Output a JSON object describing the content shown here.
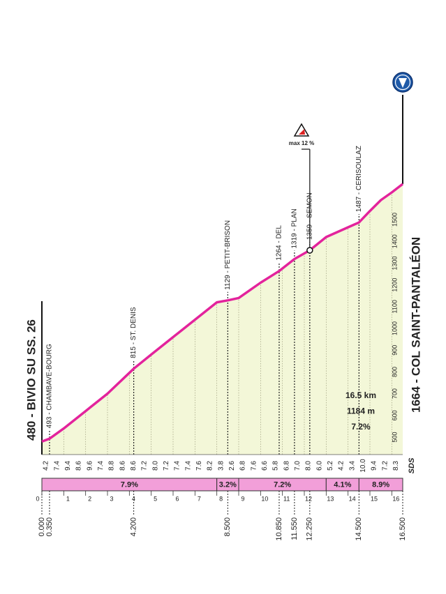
{
  "chart_data": {
    "type": "elevation-profile",
    "start_label": "480 - BIVIO SU SS. 26",
    "finish_label": "1664 - COL SAINT-PANTALÉON",
    "x": [
      0,
      0.35,
      1,
      2,
      3,
      4.2,
      5,
      6,
      7,
      8,
      8.5,
      9,
      10,
      10.85,
      11.55,
      12.25,
      13,
      14,
      14.5,
      15,
      15.5,
      16,
      16.5
    ],
    "elevation": [
      480,
      493,
      540,
      620,
      700,
      815,
      880,
      960,
      1040,
      1120,
      1129,
      1140,
      1210,
      1264,
      1319,
      1359,
      1420,
      1465,
      1487,
      1540,
      1590,
      1625,
      1664
    ],
    "color": "#e3239c",
    "fill": "#f3f7d8",
    "xlim": [
      0,
      16.5
    ],
    "xticks": [
      0,
      1,
      2,
      3,
      4,
      5,
      6,
      7,
      8,
      9,
      10,
      11,
      12,
      13,
      14,
      15,
      16
    ],
    "ylim": [
      420,
      1720
    ],
    "yticks": [
      500,
      600,
      700,
      800,
      900,
      1000,
      1100,
      1200,
      1300,
      1400,
      1500
    ],
    "distance_labels": [
      {
        "value": 0,
        "label": "0.000"
      },
      {
        "value": 0.35,
        "label": "0.350"
      },
      {
        "value": 4.2,
        "label": "4.200"
      },
      {
        "value": 8.5,
        "label": "8.500"
      },
      {
        "value": 10.85,
        "label": "10.850"
      },
      {
        "value": 11.55,
        "label": "11.550"
      },
      {
        "value": 12.25,
        "label": "12.250"
      },
      {
        "value": 14.5,
        "label": "14.500"
      },
      {
        "value": 16.5,
        "label": "16.500"
      }
    ],
    "waypoints": [
      {
        "km": 0.35,
        "elevation": 493,
        "label": "493 - CHAMBAVE-BOURG"
      },
      {
        "km": 4.2,
        "elevation": 815,
        "label": "815 - ST. DENIS"
      },
      {
        "km": 8.5,
        "elevation": 1129,
        "label": "1129 - PETIT-BRISON"
      },
      {
        "km": 10.85,
        "elevation": 1264,
        "label": "1264 - DEL"
      },
      {
        "km": 11.55,
        "elevation": 1319,
        "label": "1319 - PLAN"
      },
      {
        "km": 12.25,
        "elevation": 1359,
        "label": "1359 - SEMON"
      },
      {
        "km": 14.5,
        "elevation": 1487,
        "label": "1487 - CERISOULAZ"
      }
    ],
    "gradient_labels": [
      "4.2",
      "7.4",
      "9.4",
      "8.6",
      "9.6",
      "7.4",
      "8.8",
      "8.6",
      "8.6",
      "7.2",
      "8.0",
      "7.2",
      "7.4",
      "7.4",
      "7.6",
      "8.2",
      "3.8",
      "2.6",
      "6.8",
      "7.6",
      "6.6",
      "5.8",
      "6.8",
      "7.0",
      "8.0",
      "6.0",
      "5.2",
      "4.2",
      "3.4",
      "10.0",
      "9.4",
      "7.2",
      "8.3"
    ],
    "gradient_segments": [
      {
        "from": 0,
        "to": 8,
        "label": "7.9%"
      },
      {
        "from": 8,
        "to": 9,
        "label": "3.2%"
      },
      {
        "from": 9,
        "to": 13,
        "label": "7.2%"
      },
      {
        "from": 13,
        "to": 14.5,
        "label": "4.1%"
      },
      {
        "from": 14.5,
        "to": 16.5,
        "label": "8.9%"
      }
    ],
    "max_gradient": {
      "km": 12.25,
      "elevation": 1359,
      "label": "max 12 %"
    },
    "summary": [
      "16.5 km",
      "1184 m",
      "7.2%"
    ],
    "logo": "SDS"
  }
}
